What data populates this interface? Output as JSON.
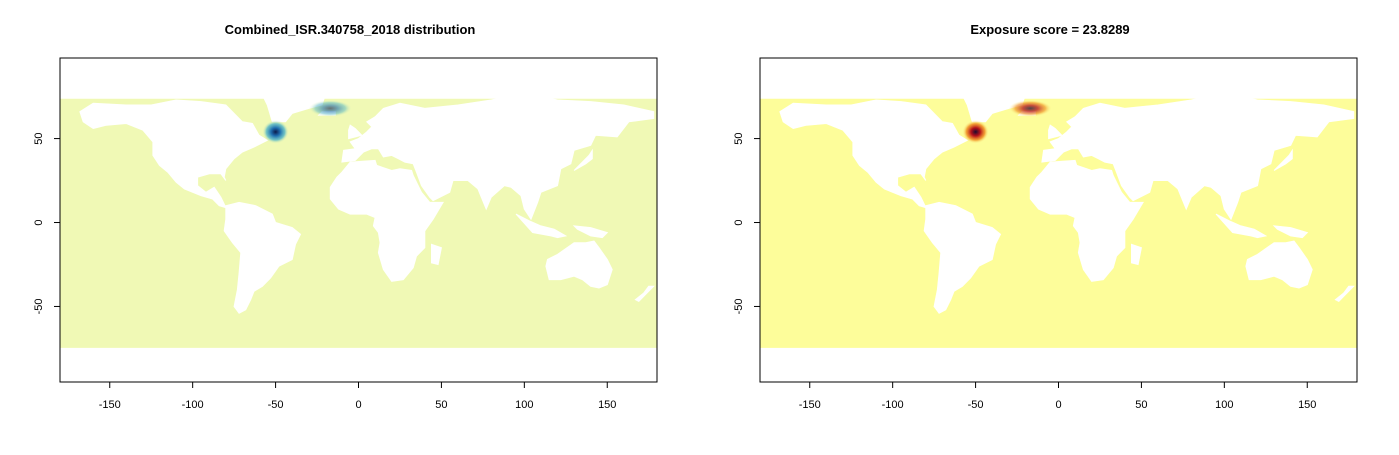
{
  "panels": [
    {
      "title": "Combined_ISR.340758_2018 distribution",
      "colors": {
        "ocean": "#f0f9b5",
        "land": "#ffffff",
        "hotspot_core": "#0b1a4a",
        "hotspot_mid": "#1f6fb0",
        "hotspot_edge": "#52b6c8"
      }
    },
    {
      "title": "Exposure score = 23.8289",
      "colors": {
        "ocean": "#fdfd9a",
        "land": "#ffffff",
        "hotspot_core": "#1a0a2e",
        "hotspot_mid": "#b5121b",
        "hotspot_edge": "#f08a1c"
      }
    }
  ],
  "chart_data": [
    {
      "type": "heatmap",
      "title": "Combined_ISR.340758_2018 distribution",
      "xlim": [
        -180,
        180
      ],
      "ylim": [
        -95,
        98
      ],
      "x_ticks": [
        -150,
        -100,
        -50,
        0,
        50,
        100,
        150
      ],
      "y_ticks": [
        -50,
        0,
        50
      ],
      "grid": false,
      "hotspots": [
        {
          "lon": -50,
          "lat": 54,
          "intensity": 1.0
        },
        {
          "lon": -17,
          "lat": 68,
          "intensity": 0.6
        }
      ]
    },
    {
      "type": "heatmap",
      "title": "Exposure score = 23.8289",
      "xlim": [
        -180,
        180
      ],
      "ylim": [
        -95,
        98
      ],
      "x_ticks": [
        -150,
        -100,
        -50,
        0,
        50,
        100,
        150
      ],
      "y_ticks": [
        -50,
        0,
        50
      ],
      "grid": false,
      "hotspots": [
        {
          "lon": -50,
          "lat": 54,
          "intensity": 1.0
        },
        {
          "lon": -17,
          "lat": 68,
          "intensity": 0.75
        }
      ]
    }
  ]
}
